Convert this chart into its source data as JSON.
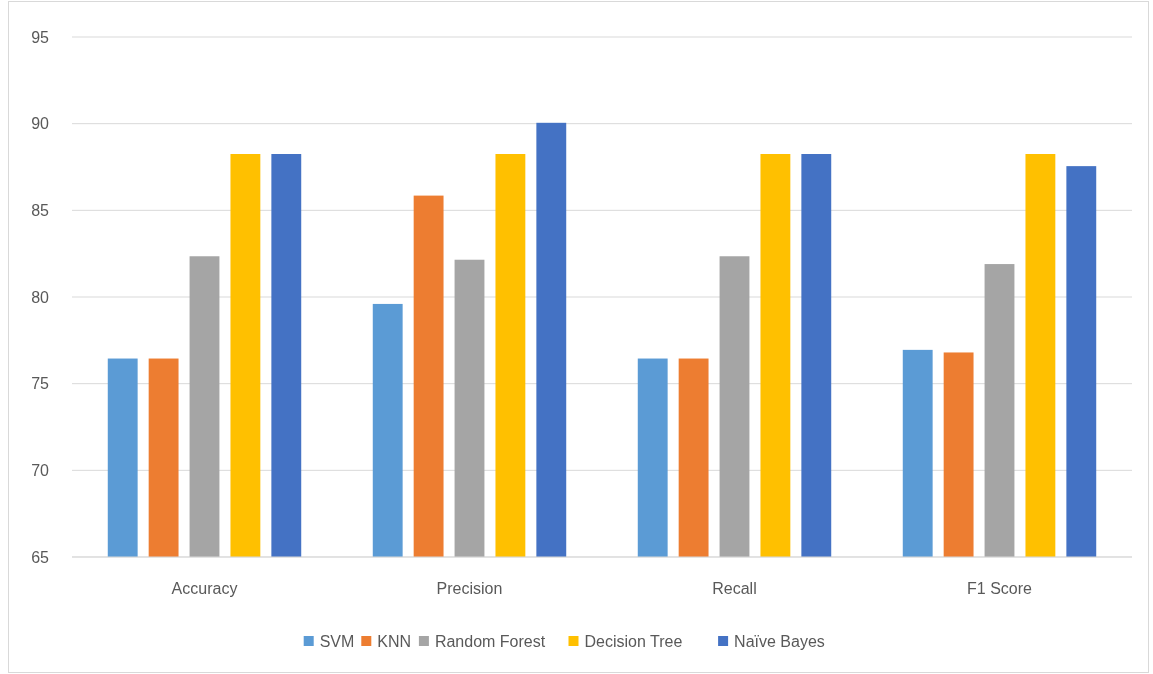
{
  "chart_data": {
    "type": "bar",
    "categories": [
      "Accuracy",
      "Precision",
      "Recall",
      "F1 Score"
    ],
    "series": [
      {
        "name": "SVM",
        "color": "#5b9bd5",
        "values": [
          76.45,
          79.6,
          76.45,
          76.95
        ]
      },
      {
        "name": "KNN",
        "color": "#ed7d31",
        "values": [
          76.45,
          85.85,
          76.45,
          76.8
        ]
      },
      {
        "name": "Random Forest",
        "color": "#a5a5a5",
        "values": [
          82.35,
          82.15,
          82.35,
          81.9
        ]
      },
      {
        "name": "Decision Tree",
        "color": "#ffc000",
        "values": [
          88.25,
          88.25,
          88.25,
          88.25
        ]
      },
      {
        "name": "Naïve Bayes",
        "color": "#4472c4",
        "values": [
          88.25,
          90.05,
          88.25,
          87.55
        ]
      }
    ],
    "ylim": [
      65,
      95
    ],
    "yticks": [
      65,
      70,
      75,
      80,
      85,
      90,
      95
    ],
    "grid": "y",
    "legend": "bottom"
  }
}
